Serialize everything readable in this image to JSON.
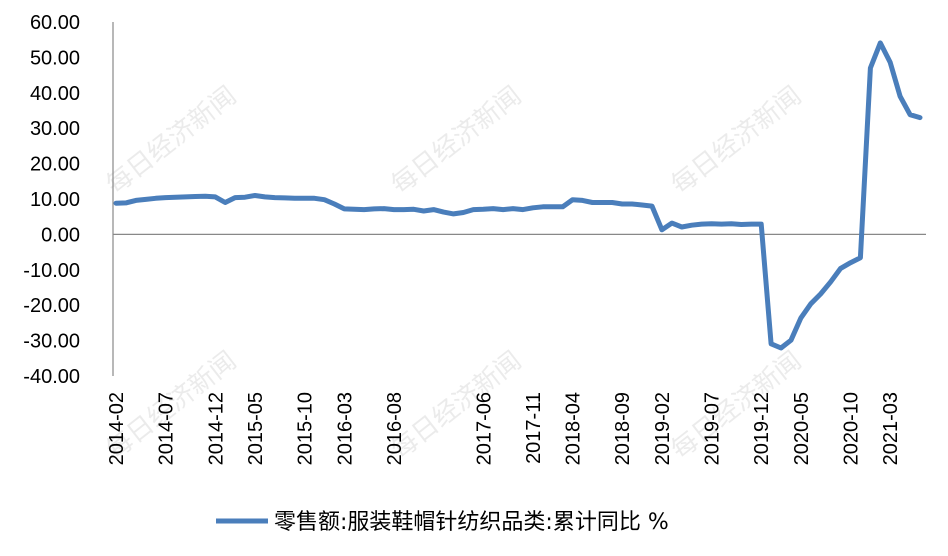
{
  "watermark": "每日经济新闻",
  "chart_data": {
    "type": "line",
    "ylim": [
      -40,
      60
    ],
    "y_ticks": [
      "60.00",
      "50.00",
      "40.00",
      "30.00",
      "20.00",
      "10.00",
      "0.00",
      "-10.00",
      "-20.00",
      "-30.00",
      "-40.00"
    ],
    "x_tick_labels": [
      "2014-02",
      "2014-07",
      "2014-12",
      "2015-05",
      "2015-10",
      "2016-03",
      "2016-08",
      "2017-01",
      "2017-06",
      "2017-11",
      "2018-04",
      "2018-09",
      "2019-02",
      "2019-07",
      "2019-12",
      "2020-05",
      "2020-10",
      "2021-03"
    ],
    "series": [
      {
        "name": "零售额:服装鞋帽针纺织品类:累计同比 %",
        "color": "#4a7ebb",
        "x": [
          "2014-02",
          "2014-03",
          "2014-04",
          "2014-05",
          "2014-06",
          "2014-07",
          "2014-08",
          "2014-09",
          "2014-10",
          "2014-11",
          "2014-12",
          "2015-02",
          "2015-03",
          "2015-04",
          "2015-05",
          "2015-06",
          "2015-07",
          "2015-08",
          "2015-09",
          "2015-10",
          "2015-11",
          "2015-12",
          "2016-02",
          "2016-03",
          "2016-04",
          "2016-05",
          "2016-06",
          "2016-07",
          "2016-08",
          "2016-09",
          "2016-10",
          "2016-11",
          "2016-12",
          "2017-02",
          "2017-03",
          "2017-04",
          "2017-05",
          "2017-06",
          "2017-07",
          "2017-08",
          "2017-09",
          "2017-10",
          "2017-11",
          "2017-12",
          "2018-02",
          "2018-03",
          "2018-04",
          "2018-05",
          "2018-06",
          "2018-07",
          "2018-08",
          "2018-09",
          "2018-10",
          "2018-11",
          "2018-12",
          "2019-02",
          "2019-03",
          "2019-04",
          "2019-05",
          "2019-06",
          "2019-07",
          "2019-08",
          "2019-09",
          "2019-10",
          "2019-11",
          "2019-12",
          "2020-02",
          "2020-03",
          "2020-04",
          "2020-05",
          "2020-06",
          "2020-07",
          "2020-08",
          "2020-09",
          "2020-10",
          "2020-11",
          "2020-12",
          "2021-02",
          "2021-03",
          "2021-04",
          "2021-05",
          "2021-06"
        ],
        "values": [
          8.8,
          8.9,
          9.6,
          9.9,
          10.2,
          10.4,
          10.5,
          10.6,
          10.7,
          10.8,
          10.6,
          9.0,
          10.4,
          10.5,
          11.0,
          10.6,
          10.4,
          10.3,
          10.2,
          10.2,
          10.2,
          9.8,
          8.6,
          7.2,
          7.1,
          7.0,
          7.2,
          7.3,
          7.0,
          7.0,
          7.1,
          6.6,
          7.0,
          6.3,
          5.8,
          6.2,
          7.0,
          7.1,
          7.3,
          7.0,
          7.3,
          7.0,
          7.5,
          7.8,
          7.8,
          7.8,
          9.8,
          9.6,
          9.0,
          9.0,
          9.0,
          8.6,
          8.6,
          8.3,
          8.0,
          1.3,
          3.2,
          2.1,
          2.6,
          2.9,
          3.0,
          2.9,
          3.0,
          2.8,
          2.9,
          2.9,
          -30.9,
          -32.1,
          -29.9,
          -23.6,
          -19.6,
          -16.8,
          -13.4,
          -9.6,
          -8.0,
          -6.6,
          47.0,
          54.1,
          48.6,
          39.0,
          33.8,
          33.0
        ]
      }
    ]
  }
}
